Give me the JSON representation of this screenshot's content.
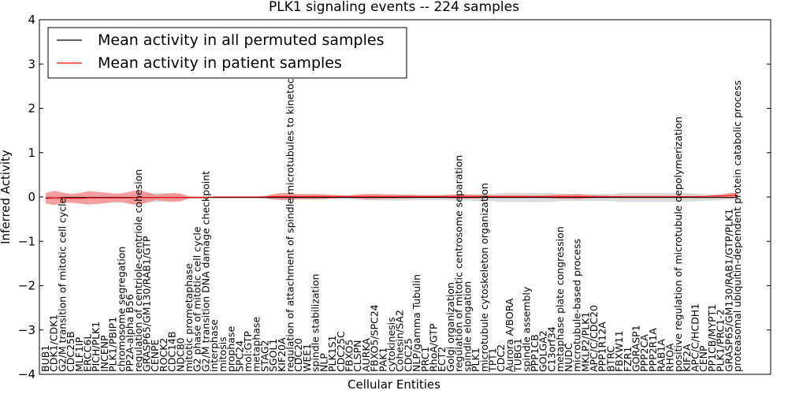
{
  "chart_data": {
    "type": "line",
    "title": "PLK1 signaling events -- 224 samples",
    "xlabel": "Cellular Entities",
    "ylabel": "Inferred Activity",
    "ylim": [
      -4,
      4
    ],
    "yticks": [
      -4,
      -3,
      -2,
      -1,
      0,
      1,
      2,
      3,
      4
    ],
    "ytick_labels": [
      "−4",
      "−3",
      "−2",
      "−1",
      "0",
      "1",
      "2",
      "3",
      "4"
    ],
    "legend": {
      "placement": "top-left",
      "entries": [
        {
          "label": "Mean activity in all permuted samples",
          "color": "#000000"
        },
        {
          "label": "Mean activity in patient samples",
          "color": "#ff0000"
        }
      ]
    },
    "categories": [
      "BUB1",
      "CDK1/CDK1",
      "G2/M transition of mitotic cell cycle",
      "CDC25B",
      "MLF1IP",
      "ERCC6L",
      "PICH/PLK1",
      "INCENP",
      "PLK1/PBIP1",
      "chromosome segregation",
      "PP2A-alpha B56",
      "regulation of centriole-centriole cohesion",
      "GRASP65/GM130/RAB1/GTP",
      "CENPE",
      "ROCK2",
      "CDC14B",
      "NDC80",
      "mitotic prometaphase",
      "G2 phase of mitotic cell cycle",
      "G2/M transition DNA damage checkpoint",
      "interphase",
      "mitosis",
      "prophase",
      "SPC24",
      "mol:GTP",
      "metaphase",
      "STAG2",
      "SGOL1",
      "KIF20A",
      "regulation of attachment of spindle microtubules to kinetochore",
      "CDC20",
      "WEE1",
      "spindle stabilization",
      "NLP",
      "PLK1S1",
      "CDC25C",
      "FBXO5",
      "CLSPN",
      "AURKA",
      "FBXO5/SPC24",
      "PAK1",
      "cytokinesis",
      "Cohesin/SA2",
      "CDC25",
      "NLP/gamma Tubulin",
      "PRC1",
      "RhoA/GTP",
      "ECT2",
      "Golgi organization",
      "regulation of mitotic centrosome separation",
      "spindle elongation",
      "PLK1",
      "microtubule cytoskeleton organization",
      "TPT1",
      "CDC2",
      "Aurora A/BORA",
      "TUBG1",
      "spindle assembly",
      "PPP1CB",
      "GOLGA2",
      "C13orf34",
      "metaphase plate congression",
      "NUDC",
      "microtubule-based process",
      "MKLP2/PLK1",
      "APC/C/CDC20",
      "PPP1R12A",
      "BTRC",
      "FBXW11",
      "FZR1",
      "GORASP1",
      "PPP2CA",
      "PPP2R1A",
      "RAB1A",
      "RHOA",
      "positive regulation of microtubule depolymerization",
      "KIF2A",
      "APC/C/HCDH1",
      "CENP",
      "PP1CB/MYPT1",
      "PLK1/PRC1-2",
      "GRASP65/GM130/RAB1/GTP/PLK1",
      "proteasomal ubiquitin-dependent protein catabolic process"
    ],
    "series": [
      {
        "name": "Mean activity in all permuted samples",
        "color": "#000000",
        "values": [
          -0.02,
          -0.02,
          -0.01,
          -0.01,
          -0.01,
          -0.01,
          -0.01,
          -0.01,
          -0.01,
          -0.01,
          -0.01,
          -0.01,
          -0.01,
          -0.01,
          -0.01,
          -0.01,
          -0.01,
          -0.01,
          -0.01,
          -0.01,
          -0.01,
          -0.01,
          -0.01,
          -0.01,
          -0.01,
          -0.01,
          -0.01,
          -0.01,
          -0.01,
          -0.01,
          -0.01,
          -0.01,
          -0.01,
          -0.01,
          -0.01,
          -0.01,
          -0.01,
          -0.01,
          -0.01,
          -0.01,
          -0.01,
          -0.01,
          -0.01,
          -0.01,
          -0.01,
          -0.01,
          -0.01,
          -0.01,
          -0.01,
          -0.01,
          -0.01,
          -0.01,
          -0.01,
          -0.01,
          -0.01,
          -0.01,
          -0.01,
          -0.01,
          -0.01,
          -0.01,
          -0.01,
          -0.01,
          -0.01,
          -0.01,
          -0.01,
          -0.01,
          -0.01,
          -0.01,
          -0.01,
          -0.01,
          -0.01,
          -0.01,
          -0.01,
          -0.01,
          -0.01,
          -0.01,
          -0.01,
          -0.01,
          -0.01,
          -0.01,
          -0.01,
          -0.01,
          -0.01
        ]
      },
      {
        "name": "Mean activity in patient samples",
        "color": "#ff0000",
        "values": [
          -0.03,
          -0.02,
          -0.02,
          -0.03,
          -0.03,
          -0.02,
          -0.02,
          -0.02,
          -0.02,
          -0.02,
          -0.02,
          -0.01,
          -0.01,
          -0.01,
          -0.01,
          -0.01,
          -0.01,
          -0.01,
          -0.01,
          -0.01,
          0,
          0,
          0,
          0,
          0,
          0,
          0,
          0.01,
          0.01,
          0.01,
          0.01,
          0.01,
          0.01,
          0.01,
          0.01,
          0.01,
          0.01,
          0.01,
          0.01,
          0.01,
          0.01,
          0.01,
          0.01,
          0.01,
          0.01,
          0.01,
          0.01,
          0.01,
          0.01,
          0.01,
          0.01,
          0.01,
          0.01,
          0.01,
          0.01,
          0.01,
          0.01,
          0.01,
          0.01,
          0.01,
          0.01,
          0.01,
          0.01,
          0.01,
          0.01,
          0.01,
          0.01,
          0.01,
          0.01,
          0.01,
          0.01,
          0.01,
          0.01,
          0.01,
          0.01,
          0.01,
          0.01,
          0.01,
          0.01,
          0.02,
          0.02,
          0.03,
          0.04
        ]
      }
    ],
    "patient_band_halfwidth": [
      0.12,
      0.16,
      0.12,
      0.1,
      0.12,
      0.15,
      0.14,
      0.12,
      0.1,
      0.1,
      0.14,
      0.17,
      0.12,
      0.06,
      0.08,
      0.1,
      0.09,
      0.02,
      0.02,
      0.02,
      0.01,
      0.01,
      0.01,
      0.01,
      0.01,
      0.01,
      0.02,
      0.06,
      0.08,
      0.07,
      0.06,
      0.06,
      0.06,
      0.05,
      0.04,
      0.03,
      0.03,
      0.05,
      0.06,
      0.06,
      0.05,
      0.05,
      0.04,
      0.04,
      0.03,
      0.03,
      0.03,
      0.03,
      0.04,
      0.05,
      0.05,
      0.04,
      0.04,
      0.03,
      0.03,
      0.03,
      0.03,
      0.03,
      0.02,
      0.03,
      0.04,
      0.05,
      0.05,
      0.06,
      0.04,
      0.03,
      0.02,
      0.01,
      0.01,
      0.01,
      0.01,
      0.01,
      0.01,
      0.01,
      0.01,
      0.01,
      0.01,
      0.01,
      0.01,
      0.02,
      0.04,
      0.06,
      0.06
    ],
    "permuted_band_halfwidth": [
      0.04,
      0.04,
      0.04,
      0.04,
      0.04,
      0.04,
      0.04,
      0.04,
      0.04,
      0.04,
      0.04,
      0.08,
      0.1,
      0.1,
      0.1,
      0.07,
      0.05,
      0.03,
      0.02,
      0.02,
      0.02,
      0.02,
      0.02,
      0.02,
      0.02,
      0.02,
      0.04,
      0.05,
      0.06,
      0.06,
      0.05,
      0.05,
      0.05,
      0.05,
      0.04,
      0.04,
      0.04,
      0.05,
      0.06,
      0.07,
      0.07,
      0.07,
      0.07,
      0.07,
      0.06,
      0.06,
      0.06,
      0.06,
      0.07,
      0.07,
      0.07,
      0.08,
      0.08,
      0.08,
      0.1,
      0.1,
      0.1,
      0.1,
      0.1,
      0.1,
      0.1,
      0.08,
      0.08,
      0.08,
      0.08,
      0.08,
      0.08,
      0.08,
      0.1,
      0.1,
      0.1,
      0.1,
      0.1,
      0.1,
      0.1,
      0.1,
      0.1,
      0.09,
      0.08,
      0.07,
      0.06,
      0.05,
      0.05
    ],
    "colors": {
      "permuted_band": "#cccccc",
      "patient_band": "#f08080",
      "permuted_line": "#000000",
      "patient_line": "#ff0000"
    }
  }
}
